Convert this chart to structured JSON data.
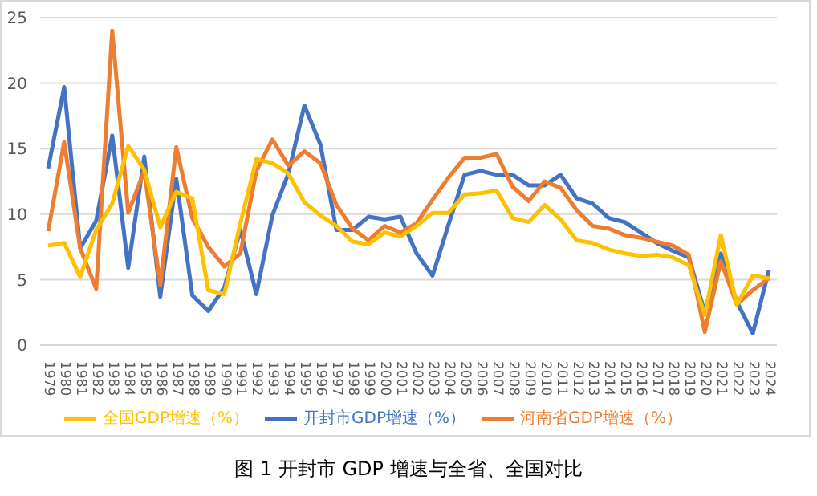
{
  "chart_data": {
    "type": "line",
    "title": "图 1 开封市 GDP 增速与全省、全国对比",
    "categories": [
      "1979",
      "1980",
      "1981",
      "1982",
      "1983",
      "1984",
      "1985",
      "1986",
      "1987",
      "1988",
      "1989",
      "1990",
      "1991",
      "1992",
      "1993",
      "1994",
      "1995",
      "1996",
      "1997",
      "1998",
      "1999",
      "2000",
      "2001",
      "2002",
      "2003",
      "2004",
      "2005",
      "2006",
      "2007",
      "2008",
      "2009",
      "2010",
      "2011",
      "2012",
      "2013",
      "2014",
      "2015",
      "2016",
      "2017",
      "2018",
      "2019",
      "2020",
      "2021",
      "2022",
      "2023",
      "2024"
    ],
    "series": [
      {
        "name": "开封市GDP增速（%）",
        "color": "#4472c4",
        "values": [
          13.5,
          19.7,
          7.4,
          9.5,
          16.0,
          5.9,
          14.4,
          3.7,
          12.7,
          3.8,
          2.6,
          4.4,
          8.8,
          3.9,
          9.9,
          13.1,
          18.3,
          15.3,
          8.8,
          8.8,
          9.8,
          9.6,
          9.8,
          7.0,
          5.3,
          9.2,
          13.0,
          13.3,
          13.0,
          13.0,
          12.2,
          12.2,
          13.0,
          11.2,
          10.8,
          9.7,
          9.4,
          8.6,
          7.8,
          7.2,
          6.7,
          2.5,
          7.0,
          3.3,
          0.9,
          5.7
        ]
      },
      {
        "name": "河南省GDP增速（%）",
        "color": "#ed7d31",
        "values": [
          8.7,
          15.5,
          7.4,
          4.3,
          24.0,
          10.1,
          13.3,
          4.6,
          15.1,
          9.7,
          7.5,
          6.0,
          7.0,
          13.3,
          15.7,
          13.7,
          14.8,
          13.9,
          10.7,
          8.9,
          8.0,
          9.1,
          8.6,
          9.3,
          11.1,
          12.8,
          14.3,
          14.3,
          14.6,
          12.1,
          11.0,
          12.5,
          12.0,
          10.3,
          9.1,
          8.9,
          8.4,
          8.2,
          7.9,
          7.6,
          6.9,
          1.0,
          6.4,
          3.1,
          4.2,
          5.1
        ]
      },
      {
        "name": "全国GDP增速（%）",
        "color": "#ffc000",
        "values": [
          7.6,
          7.8,
          5.2,
          8.8,
          10.8,
          15.2,
          13.4,
          9.0,
          11.7,
          11.2,
          4.2,
          3.9,
          9.3,
          14.2,
          13.9,
          13.1,
          10.9,
          9.9,
          9.1,
          7.9,
          7.7,
          8.6,
          8.3,
          9.1,
          10.1,
          10.1,
          11.5,
          11.6,
          11.8,
          9.7,
          9.4,
          10.7,
          9.6,
          8.0,
          7.8,
          7.3,
          7.0,
          6.8,
          6.9,
          6.7,
          6.1,
          2.3,
          8.4,
          3.1,
          5.3,
          5.1
        ]
      }
    ],
    "ylim": [
      0,
      25
    ],
    "yticks": [
      0,
      5,
      10,
      15,
      20,
      25
    ],
    "grid": "y",
    "legend": "bottom",
    "marker": "none",
    "line_style": "solid"
  }
}
